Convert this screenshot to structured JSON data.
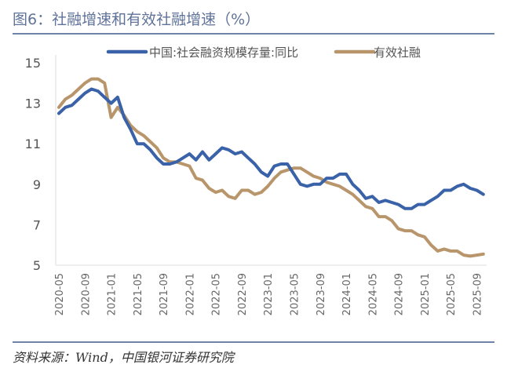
{
  "title": "图6：社融增速和有效社融增速（%）",
  "source": "资料来源：Wind，中国银河证券研究院",
  "chart_data": {
    "type": "line",
    "title": "图6：社融增速和有效社融增速（%）",
    "xlabel": "",
    "ylabel": "",
    "ylim": [
      5,
      15
    ],
    "yticks": [
      5,
      7,
      9,
      11,
      13,
      15
    ],
    "grid": false,
    "legend": "top",
    "xtick_labels": [
      "2020-05",
      "2020-09",
      "2021-01",
      "2021-05",
      "2021-09",
      "2022-01",
      "2022-05",
      "2022-09",
      "2023-01",
      "2023-05",
      "2023-09",
      "2024-01",
      "2024-05",
      "2024-09",
      "2025-01",
      "2025-05",
      "2025-09"
    ],
    "x": [
      "2020-05",
      "2020-06",
      "2020-07",
      "2020-08",
      "2020-09",
      "2020-10",
      "2020-11",
      "2020-12",
      "2021-01",
      "2021-02",
      "2021-03",
      "2021-04",
      "2021-05",
      "2021-06",
      "2021-07",
      "2021-08",
      "2021-09",
      "2021-10",
      "2021-11",
      "2021-12",
      "2022-01",
      "2022-02",
      "2022-03",
      "2022-04",
      "2022-05",
      "2022-06",
      "2022-07",
      "2022-08",
      "2022-09",
      "2022-10",
      "2022-11",
      "2022-12",
      "2023-01",
      "2023-02",
      "2023-03",
      "2023-04",
      "2023-05",
      "2023-06",
      "2023-07",
      "2023-08",
      "2023-09",
      "2023-10",
      "2023-11",
      "2023-12",
      "2024-01",
      "2024-02",
      "2024-03",
      "2024-04",
      "2024-05",
      "2024-06",
      "2024-07",
      "2024-08",
      "2024-09",
      "2024-10",
      "2024-11",
      "2024-12",
      "2025-01",
      "2025-02",
      "2025-03",
      "2025-04",
      "2025-05",
      "2025-06",
      "2025-07",
      "2025-08",
      "2025-09",
      "2025-10"
    ],
    "series": [
      {
        "name": "中国:社会融资规模存量:同比",
        "color": "#3a62a8",
        "values": [
          12.5,
          12.8,
          12.9,
          13.2,
          13.5,
          13.7,
          13.6,
          13.3,
          13.0,
          13.3,
          12.3,
          11.7,
          11.0,
          11.0,
          10.7,
          10.3,
          10.0,
          10.0,
          10.1,
          10.3,
          10.5,
          10.2,
          10.6,
          10.2,
          10.5,
          10.8,
          10.7,
          10.5,
          10.6,
          10.3,
          10.0,
          9.6,
          9.4,
          9.9,
          10.0,
          10.0,
          9.5,
          9.0,
          8.9,
          9.0,
          9.0,
          9.3,
          9.3,
          9.5,
          9.5,
          9.0,
          8.7,
          8.3,
          8.4,
          8.1,
          8.2,
          8.1,
          8.0,
          7.8,
          7.8,
          8.0,
          8.0,
          8.2,
          8.4,
          8.7,
          8.7,
          8.9,
          9.0,
          8.8,
          8.7,
          8.5
        ]
      },
      {
        "name": "有效社融",
        "color": "#b8956a",
        "values": [
          12.8,
          13.2,
          13.4,
          13.7,
          14.0,
          14.2,
          14.2,
          14.0,
          12.3,
          12.8,
          12.4,
          11.9,
          11.6,
          11.4,
          11.1,
          10.8,
          10.3,
          10.1,
          10.1,
          10.0,
          9.9,
          9.3,
          9.2,
          8.8,
          8.6,
          8.7,
          8.4,
          8.3,
          8.7,
          8.7,
          8.5,
          8.6,
          8.9,
          9.3,
          9.6,
          9.7,
          9.8,
          9.8,
          9.6,
          9.4,
          9.3,
          9.1,
          9.0,
          8.9,
          8.7,
          8.5,
          8.2,
          7.9,
          7.8,
          7.4,
          7.4,
          7.2,
          6.8,
          6.7,
          6.7,
          6.5,
          6.4,
          6.0,
          5.7,
          5.8,
          5.7,
          5.7,
          5.5,
          5.45,
          5.5,
          5.55
        ]
      }
    ]
  }
}
